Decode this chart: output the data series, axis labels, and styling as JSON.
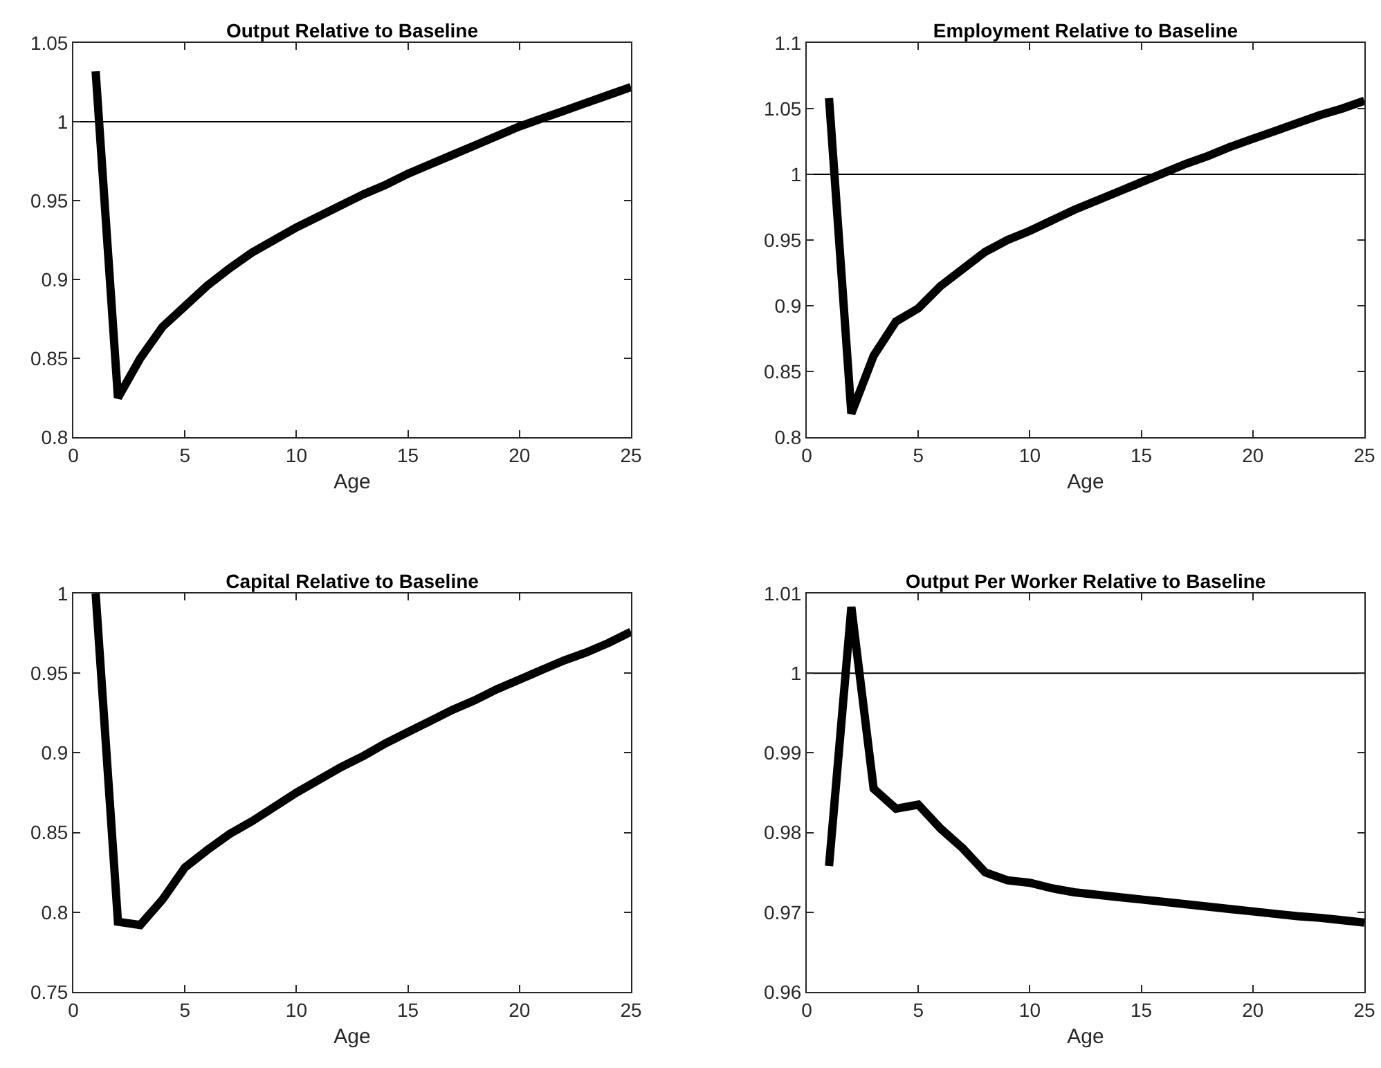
{
  "chart_data": [
    {
      "type": "line",
      "title": "Output Relative to Baseline",
      "xlabel": "Age",
      "x": [
        1,
        2,
        3,
        4,
        5,
        6,
        7,
        8,
        9,
        10,
        11,
        12,
        13,
        14,
        15,
        16,
        17,
        18,
        19,
        20,
        21,
        22,
        23,
        24,
        25
      ],
      "series": [
        {
          "color": "#000000",
          "values": [
            1.032,
            0.825,
            0.85,
            0.87,
            0.883,
            0.896,
            0.907,
            0.917,
            0.925,
            0.933,
            0.94,
            0.947,
            0.954,
            0.96,
            0.967,
            0.973,
            0.979,
            0.985,
            0.991,
            0.997,
            1.002,
            1.007,
            1.012,
            1.017,
            1.022
          ]
        }
      ],
      "xlim": [
        0,
        25
      ],
      "xticks": [
        0,
        5,
        10,
        15,
        20,
        25
      ],
      "ylim": [
        0.8,
        1.05
      ],
      "yticks": [
        0.8,
        0.85,
        0.9,
        0.95,
        1,
        1.05
      ],
      "marker": "none",
      "line_style": "solid",
      "ref_lines": [
        {
          "axis": "y",
          "value": 1,
          "color": "#000000"
        }
      ]
    },
    {
      "type": "line",
      "title": "Employment Relative to Baseline",
      "xlabel": "Age",
      "x": [
        1,
        2,
        3,
        4,
        5,
        6,
        7,
        8,
        9,
        10,
        11,
        12,
        13,
        14,
        15,
        16,
        17,
        18,
        19,
        20,
        21,
        22,
        23,
        24,
        25
      ],
      "series": [
        {
          "color": "#000000",
          "values": [
            1.058,
            0.818,
            0.862,
            0.888,
            0.898,
            0.915,
            0.928,
            0.941,
            0.95,
            0.957,
            0.965,
            0.973,
            0.98,
            0.987,
            0.994,
            1.001,
            1.008,
            1.014,
            1.021,
            1.027,
            1.033,
            1.039,
            1.045,
            1.05,
            1.056
          ]
        }
      ],
      "xlim": [
        0,
        25
      ],
      "xticks": [
        0,
        5,
        10,
        15,
        20,
        25
      ],
      "ylim": [
        0.8,
        1.1
      ],
      "yticks": [
        0.8,
        0.85,
        0.9,
        0.95,
        1,
        1.05,
        1.1
      ],
      "marker": "none",
      "line_style": "solid",
      "ref_lines": [
        {
          "axis": "y",
          "value": 1,
          "color": "#000000"
        }
      ]
    },
    {
      "type": "line",
      "title": "Capital Relative to Baseline",
      "xlabel": "Age",
      "x": [
        1,
        2,
        3,
        4,
        5,
        6,
        7,
        8,
        9,
        10,
        11,
        12,
        13,
        14,
        15,
        16,
        17,
        18,
        19,
        20,
        21,
        22,
        23,
        24,
        25
      ],
      "series": [
        {
          "color": "#000000",
          "values": [
            1.0,
            0.794,
            0.792,
            0.808,
            0.828,
            0.839,
            0.849,
            0.857,
            0.866,
            0.875,
            0.883,
            0.891,
            0.898,
            0.906,
            0.913,
            0.92,
            0.927,
            0.933,
            0.94,
            0.946,
            0.952,
            0.958,
            0.963,
            0.969,
            0.976
          ]
        }
      ],
      "xlim": [
        0,
        25
      ],
      "xticks": [
        0,
        5,
        10,
        15,
        20,
        25
      ],
      "ylim": [
        0.75,
        1
      ],
      "yticks": [
        0.75,
        0.8,
        0.85,
        0.9,
        0.95,
        1
      ],
      "marker": "none",
      "line_style": "solid"
    },
    {
      "type": "line",
      "title": "Output Per Worker Relative to Baseline",
      "xlabel": "Age",
      "x": [
        1,
        2,
        3,
        4,
        5,
        6,
        7,
        8,
        9,
        10,
        11,
        12,
        13,
        14,
        15,
        16,
        17,
        18,
        19,
        20,
        21,
        22,
        23,
        24,
        25
      ],
      "series": [
        {
          "color": "#000000",
          "values": [
            0.9758,
            1.0083,
            0.9855,
            0.983,
            0.9835,
            0.9805,
            0.978,
            0.975,
            0.974,
            0.9737,
            0.973,
            0.9725,
            0.9722,
            0.9719,
            0.9716,
            0.9713,
            0.971,
            0.9707,
            0.9704,
            0.9701,
            0.9698,
            0.9695,
            0.9693,
            0.969,
            0.9687
          ]
        }
      ],
      "xlim": [
        0,
        25
      ],
      "xticks": [
        0,
        5,
        10,
        15,
        20,
        25
      ],
      "ylim": [
        0.96,
        1.01
      ],
      "yticks": [
        0.96,
        0.97,
        0.98,
        0.99,
        1,
        1.01
      ],
      "marker": "none",
      "line_style": "solid",
      "ref_lines": [
        {
          "axis": "y",
          "value": 1,
          "color": "#000000"
        }
      ]
    }
  ]
}
